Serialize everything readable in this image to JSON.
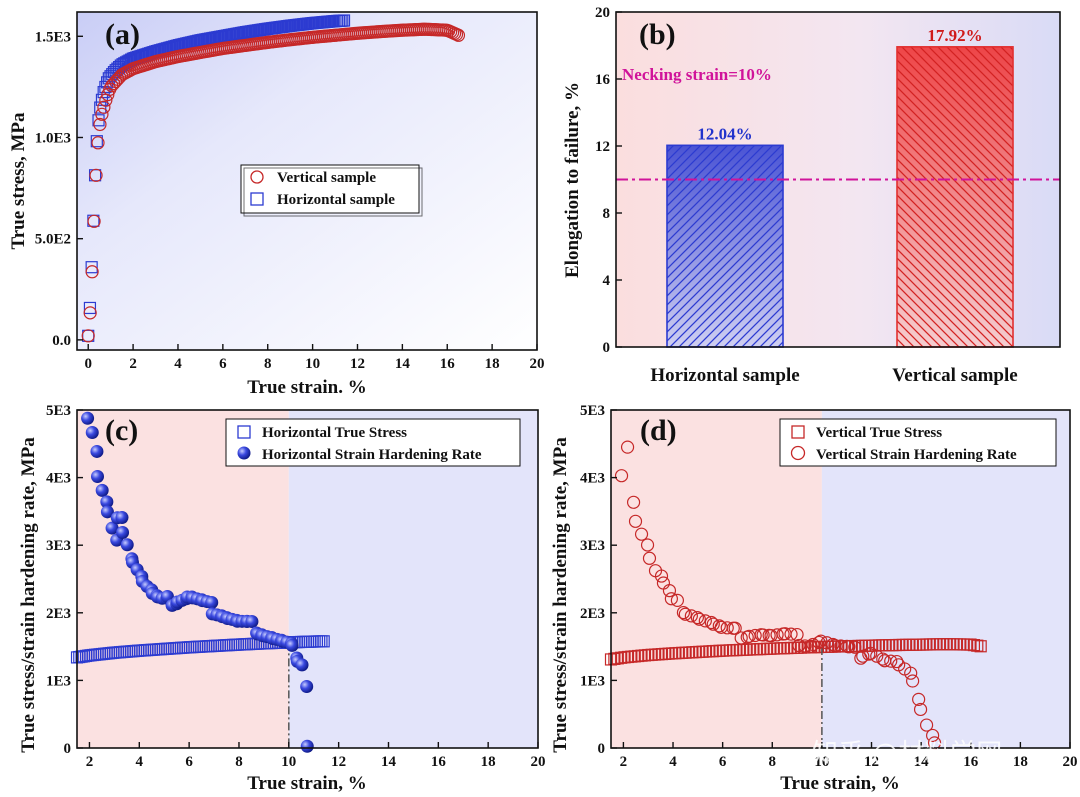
{
  "watermark": "知乎 @材料学网",
  "colors": {
    "red": "#c62828",
    "blue": "#2c3bd1",
    "magenta": "#d0139a",
    "blue_label": "#2233cc",
    "red_label": "#d01a1a"
  },
  "chart_data": [
    {
      "panel_label": "(a)",
      "type": "scatter",
      "xlabel": "True strain. %",
      "ylabel": "True stress, MPa",
      "xlim": [
        -0.5,
        20
      ],
      "ylim": [
        -50,
        1620
      ],
      "xticks": [
        0,
        2,
        4,
        6,
        8,
        10,
        12,
        14,
        16,
        18,
        20
      ],
      "xtick_labels": [
        "0",
        "2",
        "4",
        "6",
        "8",
        "10",
        "12",
        "14",
        "16",
        "18",
        "20"
      ],
      "yticks": [
        0,
        500,
        1000,
        1500
      ],
      "ytick_labels": [
        "0.0",
        "5.0E2",
        "1.0E3",
        "1.5E3"
      ],
      "grid": false,
      "legend_position": "center",
      "series": [
        {
          "name": "Vertical sample",
          "marker": "open-circle",
          "x": [
            0,
            0.1,
            0.2,
            0.3,
            0.4,
            0.5,
            0.6,
            0.8,
            1.0,
            1.5,
            2,
            3,
            4,
            5,
            6,
            7,
            8,
            9,
            10,
            11,
            12,
            13,
            14,
            15,
            16,
            16.5
          ],
          "y": [
            20,
            150,
            400,
            700,
            930,
            1050,
            1110,
            1190,
            1250,
            1310,
            1340,
            1375,
            1400,
            1420,
            1440,
            1455,
            1470,
            1483,
            1495,
            1505,
            1515,
            1523,
            1530,
            1535,
            1530,
            1505
          ]
        },
        {
          "name": "Horizontal sample",
          "marker": "open-square",
          "x": [
            0,
            0.1,
            0.2,
            0.3,
            0.4,
            0.5,
            0.7,
            0.9,
            1.2,
            1.5,
            2,
            3,
            4,
            5,
            6,
            7,
            8,
            9,
            10,
            11,
            11.4
          ],
          "y": [
            20,
            200,
            500,
            800,
            1020,
            1130,
            1230,
            1290,
            1330,
            1360,
            1390,
            1425,
            1455,
            1480,
            1500,
            1520,
            1537,
            1552,
            1565,
            1575,
            1578
          ]
        }
      ]
    },
    {
      "panel_label": "(b)",
      "type": "bar",
      "categories": [
        "Horizontal sample",
        "Vertical sample"
      ],
      "values": [
        12.04,
        17.92
      ],
      "value_labels": [
        "12.04%",
        "17.92%"
      ],
      "ylabel": "Elongation to failure, %",
      "ylim": [
        0,
        20
      ],
      "yticks": [
        0,
        4,
        8,
        12,
        16,
        20
      ],
      "ytick_labels": [
        "0",
        "4",
        "8",
        "12",
        "16",
        "20"
      ],
      "reference_line": {
        "value": 10,
        "label": "Necking strain=10%"
      },
      "grid": false
    },
    {
      "panel_label": "(c)",
      "type": "scatter",
      "xlabel": "True strain, %",
      "ylabel": "True stress/strain hardening rate, MPa",
      "xlim": [
        1.5,
        20
      ],
      "ylim": [
        0,
        5000
      ],
      "xticks": [
        2,
        4,
        6,
        8,
        10,
        12,
        14,
        16,
        18,
        20
      ],
      "xtick_labels": [
        "2",
        "4",
        "6",
        "8",
        "10",
        "12",
        "14",
        "16",
        "18",
        "20"
      ],
      "yticks": [
        0,
        1000,
        2000,
        3000,
        4000,
        5000
      ],
      "ytick_labels": [
        "0",
        "1E3",
        "2E3",
        "3E3",
        "4E3",
        "5E3"
      ],
      "marker_line_x": 10,
      "legend_position": "top-right",
      "series": [
        {
          "name": "Horizontal True Stress",
          "marker": "open-square",
          "x": [
            1.5,
            2,
            3,
            4,
            5,
            6,
            7,
            8,
            9,
            10,
            11,
            11.4
          ],
          "y": [
            1340,
            1370,
            1410,
            1440,
            1465,
            1490,
            1510,
            1530,
            1548,
            1562,
            1575,
            1578
          ]
        },
        {
          "name": "Horizontal Strain Hardening Rate",
          "marker": "filled-circle",
          "x": [
            2.0,
            2.2,
            2.4,
            2.6,
            2.8,
            3.0,
            3.2,
            3.5,
            3.8,
            4.0,
            4.3,
            4.6,
            5.0,
            5.5,
            6.0,
            6.5,
            7.0,
            7.5,
            8.0,
            8.5,
            9.0,
            9.5,
            10.0,
            10.3,
            10.6,
            10.7,
            10.8
          ],
          "y": [
            4950,
            4600,
            4000,
            3700,
            3450,
            3000,
            3500,
            2950,
            2800,
            2600,
            2400,
            2250,
            2150,
            2200,
            2250,
            2150,
            2050,
            1950,
            1850,
            1800,
            1700,
            1600,
            1500,
            1400,
            1250,
            830,
            50
          ]
        }
      ]
    },
    {
      "panel_label": "(d)",
      "type": "scatter",
      "xlabel": "True strain, %",
      "ylabel": "True stress/strain hardening rate, MPa",
      "xlim": [
        1.5,
        20
      ],
      "ylim": [
        0,
        5000
      ],
      "xticks": [
        2,
        4,
        6,
        8,
        10,
        12,
        14,
        16,
        18,
        20
      ],
      "xtick_labels": [
        "2",
        "4",
        "6",
        "8",
        "10",
        "12",
        "14",
        "16",
        "18",
        "20"
      ],
      "yticks": [
        0,
        1000,
        2000,
        3000,
        4000,
        5000
      ],
      "ytick_labels": [
        "0",
        "1E3",
        "2E3",
        "3E3",
        "4E3",
        "5E3"
      ],
      "marker_line_x": 10,
      "legend_position": "top-right",
      "series": [
        {
          "name": "Vertical True Stress",
          "marker": "open-square",
          "x": [
            1.5,
            2,
            3,
            4,
            5,
            6,
            7,
            8,
            9,
            10,
            11,
            12,
            13,
            14,
            15,
            16,
            16.4
          ],
          "y": [
            1310,
            1340,
            1375,
            1400,
            1420,
            1440,
            1455,
            1470,
            1483,
            1495,
            1505,
            1515,
            1523,
            1530,
            1535,
            1530,
            1505
          ]
        },
        {
          "name": "Vertical Strain Hardening Rate",
          "marker": "open-circle",
          "x": [
            2.0,
            2.2,
            2.4,
            2.6,
            2.8,
            3.0,
            3.2,
            3.5,
            3.8,
            4.0,
            4.5,
            5.0,
            5.5,
            6.0,
            6.5,
            7.0,
            7.5,
            8.0,
            8.5,
            9.0,
            9.5,
            10.0,
            10.5,
            11.0,
            11.5,
            12.0,
            12.5,
            13.0,
            13.5,
            14.0,
            14.3,
            14.6
          ],
          "y": [
            4100,
            4550,
            3500,
            3350,
            3100,
            2950,
            2650,
            2500,
            2300,
            2150,
            2050,
            1950,
            1850,
            1750,
            1700,
            1700,
            1700,
            1650,
            1650,
            1600,
            1550,
            1600,
            1500,
            1450,
            1400,
            1450,
            1300,
            1250,
            1050,
            700,
            300,
            100
          ]
        }
      ]
    }
  ]
}
